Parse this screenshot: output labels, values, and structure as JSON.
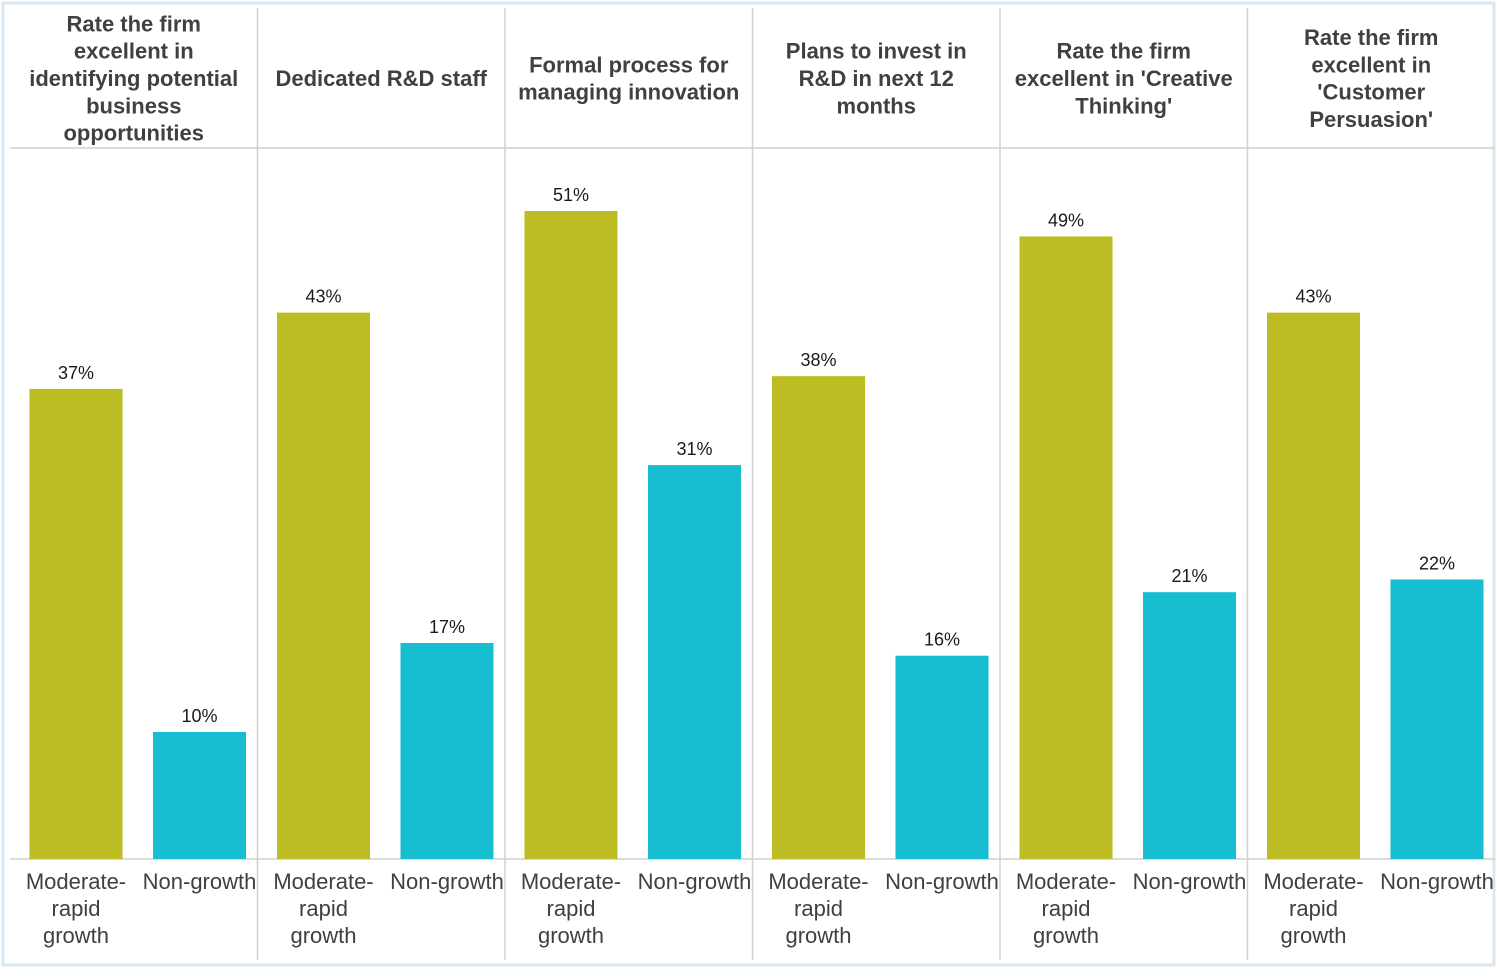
{
  "chart_data": {
    "type": "bar",
    "panels": [
      {
        "title_lines": [
          "Rate the firm",
          "excellent in",
          "identifying potential",
          "business",
          "opportunities"
        ],
        "values": [
          37,
          10
        ]
      },
      {
        "title_lines": [
          "Dedicated R&D staff"
        ],
        "values": [
          43,
          17
        ]
      },
      {
        "title_lines": [
          "Formal process for",
          "managing innovation"
        ],
        "values": [
          51,
          31
        ]
      },
      {
        "title_lines": [
          "Plans to invest in",
          "R&D in next 12",
          "months"
        ],
        "values": [
          38,
          16
        ]
      },
      {
        "title_lines": [
          "Rate the firm",
          "excellent in 'Creative",
          "Thinking'"
        ],
        "values": [
          49,
          21
        ]
      },
      {
        "title_lines": [
          "Rate the firm",
          "excellent in",
          "'Customer",
          "Persuasion'"
        ],
        "values": [
          43,
          22
        ]
      }
    ],
    "categories": [
      {
        "lines": [
          "Moderate-",
          "rapid",
          "growth"
        ]
      },
      {
        "lines": [
          "Non-growth"
        ]
      }
    ],
    "series_colors": [
      "#bcbd22",
      "#17becf"
    ],
    "value_suffix": "%",
    "ylim": [
      0,
      51
    ],
    "grid": false,
    "legend": "none",
    "border_color": "#d9e8f0",
    "divider_color": "#d0d0d0"
  }
}
